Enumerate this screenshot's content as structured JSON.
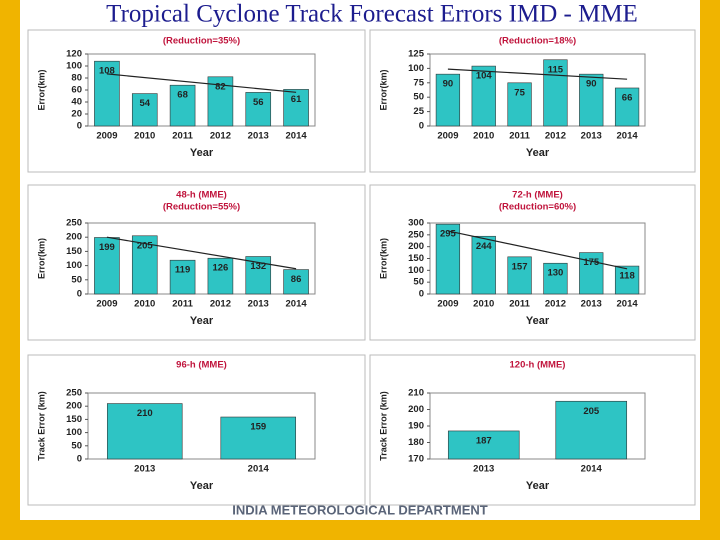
{
  "title": "Tropical Cyclone Track Forecast Errors IMD - MME",
  "footer": "INDIA METEOROLOGICAL DEPARTMENT",
  "chart_data": [
    {
      "type": "bar",
      "subtitle": "(Reduction=35%)",
      "y_label": "Error(km)",
      "x_label": "Year",
      "categories": [
        "2009",
        "2010",
        "2011",
        "2012",
        "2013",
        "2014"
      ],
      "values": [
        108,
        54,
        68,
        82,
        56,
        61
      ],
      "color": "#2ec4c4",
      "ylim": [
        0,
        120
      ],
      "yticks": [
        0,
        20,
        40,
        60,
        80,
        100,
        120
      ],
      "trendline": true
    },
    {
      "type": "bar",
      "subtitle": "(Reduction=18%)",
      "y_label": "Error(km)",
      "x_label": "Year",
      "categories": [
        "2009",
        "2010",
        "2011",
        "2012",
        "2013",
        "2014"
      ],
      "values": [
        90,
        104,
        75,
        115,
        90,
        66
      ],
      "color": "#2ec4c4",
      "ylim": [
        0,
        125
      ],
      "yticks": [
        0,
        25,
        50,
        75,
        100,
        125
      ],
      "trendline": true
    },
    {
      "type": "bar",
      "title": "48-h (MME)",
      "subtitle": "(Reduction=55%)",
      "y_label": "Error(km)",
      "x_label": "Year",
      "categories": [
        "2009",
        "2010",
        "2011",
        "2012",
        "2013",
        "2014"
      ],
      "values": [
        199,
        205,
        119,
        126,
        132,
        86
      ],
      "color": "#2ec4c4",
      "ylim": [
        0,
        250
      ],
      "yticks": [
        0,
        50,
        100,
        150,
        200,
        250
      ],
      "trendline": true
    },
    {
      "type": "bar",
      "title": "72-h (MME)",
      "subtitle": "(Reduction=60%)",
      "y_label": "Error(km)",
      "x_label": "Year",
      "categories": [
        "2009",
        "2010",
        "2011",
        "2012",
        "2013",
        "2014"
      ],
      "values": [
        295,
        244,
        157,
        130,
        175,
        118
      ],
      "color": "#2ec4c4",
      "ylim": [
        0,
        300
      ],
      "yticks": [
        0,
        50,
        100,
        150,
        200,
        250,
        300
      ],
      "trendline": true
    },
    {
      "type": "bar",
      "title": "96-h (MME)",
      "y_label": "Track Error (km)",
      "x_label": "Year",
      "categories": [
        "2013",
        "2014"
      ],
      "values": [
        210,
        159
      ],
      "color": "#2ec4c4",
      "ylim": [
        0,
        250
      ],
      "yticks": [
        0,
        50,
        100,
        150,
        200,
        250
      ],
      "trendline": false
    },
    {
      "type": "bar",
      "title": "120-h (MME)",
      "y_label": "Track Error (km)",
      "x_label": "Year",
      "categories": [
        "2013",
        "2014"
      ],
      "values": [
        187,
        205
      ],
      "color": "#2ec4c4",
      "ylim": [
        170,
        210
      ],
      "yticks": [
        170,
        180,
        190,
        200,
        210
      ],
      "trendline": false
    }
  ]
}
